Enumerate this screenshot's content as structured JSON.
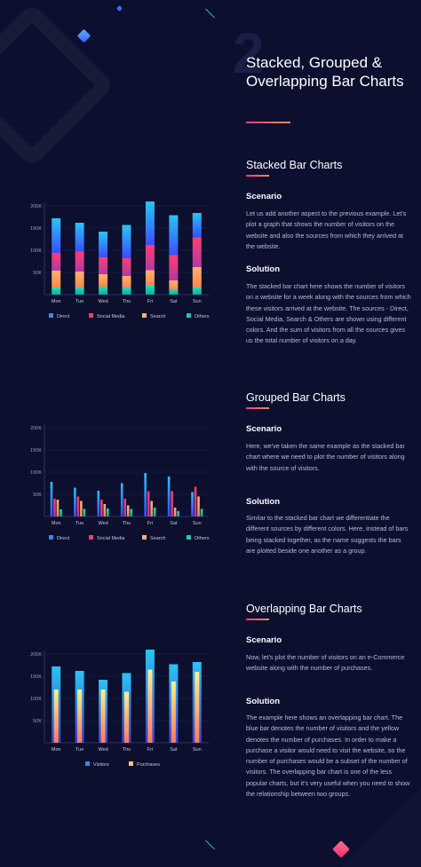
{
  "header": {
    "number": "2",
    "title": "Stacked, Grouped & Overlapping Bar Charts"
  },
  "sections": [
    {
      "title": "Stacked Bar Charts",
      "scenario_heading": "Scenario",
      "scenario_text": "Let us add another aspect to the previous example. Let's plot a graph that shows the number of visitors on the website and also the sources from which they arrived at the website.",
      "solution_heading": "Solution",
      "solution_text": "The stacked bar chart here shows the number of visitors on a website for a week along with the sources from which these visitors arrived at the website. The sources - Direct, Social Media, Search & Others are shown using different colors. And the sum of visitors from all the sources gives us the total number of visitors on a day."
    },
    {
      "title": "Grouped Bar Charts",
      "scenario_heading": "Scenario",
      "scenario_text": "Here, we've taken the same example as the stacked bar chart where we need to plot the number of visitors along with the source of visitors.",
      "solution_heading": "Solution",
      "solution_text": "Similar to the stacked bar chart we differentiate the different sources by different colors. Here, instead of bars being stacked together, as the name suggests the bars are plotted beside one another as a group."
    },
    {
      "title": "Overlapping Bar Charts",
      "scenario_heading": "Scenario",
      "scenario_text": "Now, let's plot the number of visitors on an e-Commerce website along with the number of purchases.",
      "solution_heading": "Solution",
      "solution_text": "The example here shows an overlapping bar chart. The blue bar denotes the number of visitors and the yellow denotes the number of purchases. In order to make a purchase a visitor would need to visit the website, so the number of purchases would be a subset of the number of visitors. The overlapping bar chart is one of the less popular charts, but it's very useful when you need to show the relationship between two groups."
    }
  ],
  "colors": {
    "direct": "#2f8bff",
    "social": "#ff3d6e",
    "search": "#ffb072",
    "others": "#1fc9b4",
    "visitors": "#2f8bff",
    "purchases": "#ffc27a"
  },
  "chart_data": [
    {
      "type": "bar",
      "stacked": true,
      "categories": [
        "Mon",
        "Tue",
        "Wed",
        "Thu",
        "Fri",
        "Sat",
        "Sun"
      ],
      "series": [
        {
          "name": "Direct",
          "values": [
            78,
            65,
            58,
            75,
            98,
            90,
            55
          ]
        },
        {
          "name": "Social Media",
          "values": [
            40,
            45,
            38,
            40,
            57,
            57,
            67
          ]
        },
        {
          "name": "Search",
          "values": [
            38,
            35,
            28,
            25,
            35,
            20,
            45
          ]
        },
        {
          "name": "Others",
          "values": [
            16,
            17,
            18,
            17,
            20,
            12,
            17
          ]
        }
      ],
      "y_ticks": [
        "50K",
        "100K",
        "150K",
        "200K"
      ],
      "ylim": [
        0,
        200
      ],
      "legend": "bottom"
    },
    {
      "type": "bar",
      "grouped": true,
      "categories": [
        "Mon",
        "Tue",
        "Wed",
        "Thu",
        "Fri",
        "Sat",
        "Sun"
      ],
      "series": [
        {
          "name": "Direct",
          "values": [
            78,
            65,
            58,
            75,
            98,
            90,
            55
          ]
        },
        {
          "name": "Social Media",
          "values": [
            40,
            45,
            38,
            40,
            57,
            57,
            67
          ]
        },
        {
          "name": "Search",
          "values": [
            38,
            35,
            28,
            25,
            35,
            20,
            45
          ]
        },
        {
          "name": "Others",
          "values": [
            16,
            17,
            18,
            17,
            20,
            12,
            17
          ]
        }
      ],
      "y_ticks": [
        "50K",
        "100K",
        "150K",
        "200K"
      ],
      "ylim": [
        0,
        200
      ],
      "legend": "bottom"
    },
    {
      "type": "bar",
      "overlapping": true,
      "categories": [
        "Mon",
        "Tue",
        "Wed",
        "Thu",
        "Fri",
        "Sat",
        "Sun"
      ],
      "series": [
        {
          "name": "Visitors",
          "values": [
            172,
            162,
            142,
            157,
            210,
            177,
            182
          ]
        },
        {
          "name": "Purchases",
          "values": [
            120,
            120,
            120,
            115,
            165,
            138,
            160
          ]
        }
      ],
      "y_ticks": [
        "50K",
        "100K",
        "150K",
        "200K"
      ],
      "ylim": [
        0,
        200
      ],
      "legend": "bottom"
    }
  ]
}
